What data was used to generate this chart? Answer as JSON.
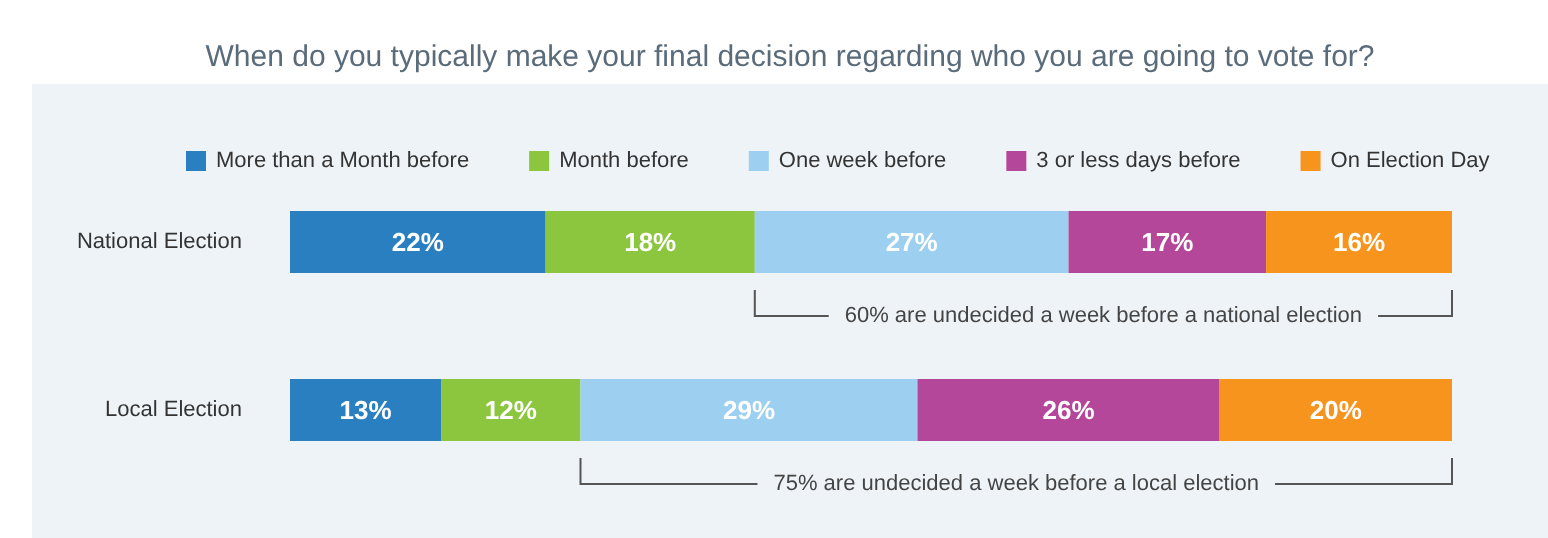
{
  "chart_data": {
    "type": "bar",
    "orientation": "horizontal",
    "stacked": true,
    "title": "When do you typically make your final decision regarding who you are going to vote for?",
    "categories": [
      "National Election",
      "Local Election"
    ],
    "series": [
      {
        "name": "More than a Month before",
        "color": "#2a7fc1",
        "values": [
          22,
          13
        ],
        "value_labels": [
          "22%",
          "13%"
        ]
      },
      {
        "name": "Month before",
        "color": "#8cc63f",
        "values": [
          18,
          12
        ],
        "value_labels": [
          "18%",
          "12%"
        ]
      },
      {
        "name": "One week before",
        "color": "#9dcff0",
        "values": [
          27,
          29
        ],
        "value_labels": [
          "27%",
          "29%"
        ]
      },
      {
        "name": "3 or less days before",
        "color": "#b4479a",
        "values": [
          17,
          26
        ],
        "value_labels": [
          "17%",
          "26%"
        ]
      },
      {
        "name": "On Election Day",
        "color": "#f7941d",
        "values": [
          16,
          20
        ],
        "value_labels": [
          "16%",
          "20%"
        ]
      }
    ],
    "xlim": [
      0,
      100
    ],
    "legend": "top",
    "annotations": [
      "60% are undecided a week before a national election",
      "75% are undecided a week before a local election"
    ]
  }
}
